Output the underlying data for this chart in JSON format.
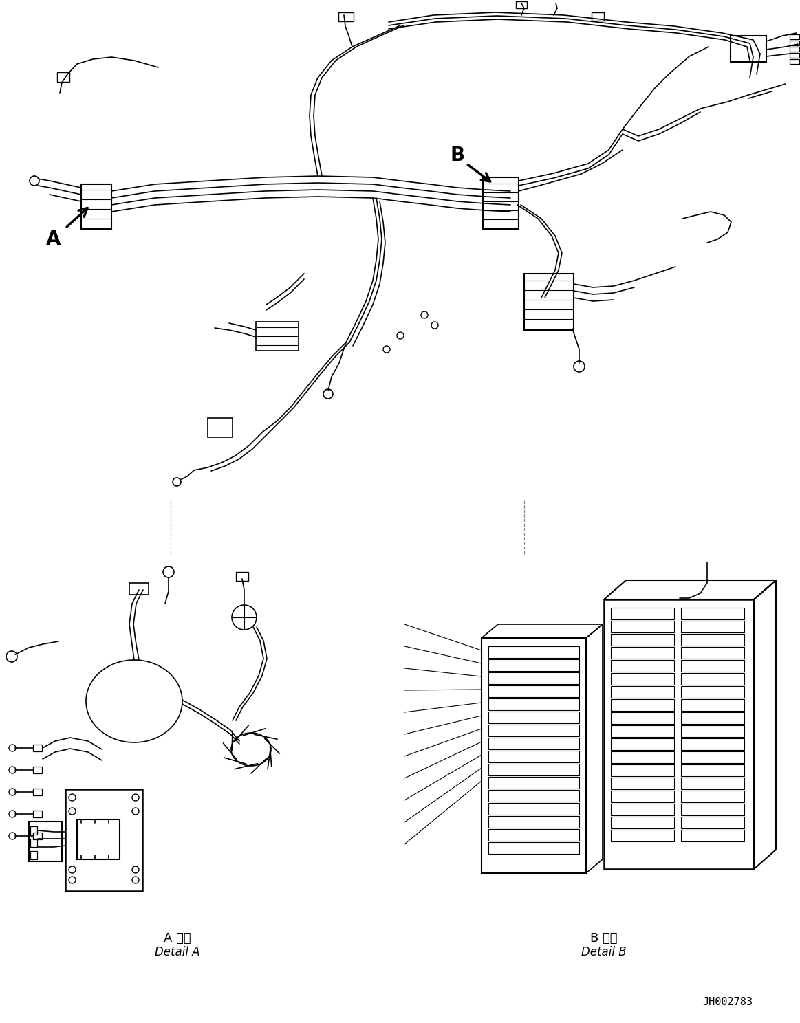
{
  "title": "",
  "background_color": "#ffffff",
  "drawing_color": "#000000",
  "label_A": "A",
  "label_B": "B",
  "detail_A_jp": "A 詳細",
  "detail_A_en": "Detail A",
  "detail_B_jp": "B 詳細",
  "detail_B_en": "Detail B",
  "part_number": "JH002783",
  "fig_width": 11.63,
  "fig_height": 14.88,
  "dpi": 100
}
